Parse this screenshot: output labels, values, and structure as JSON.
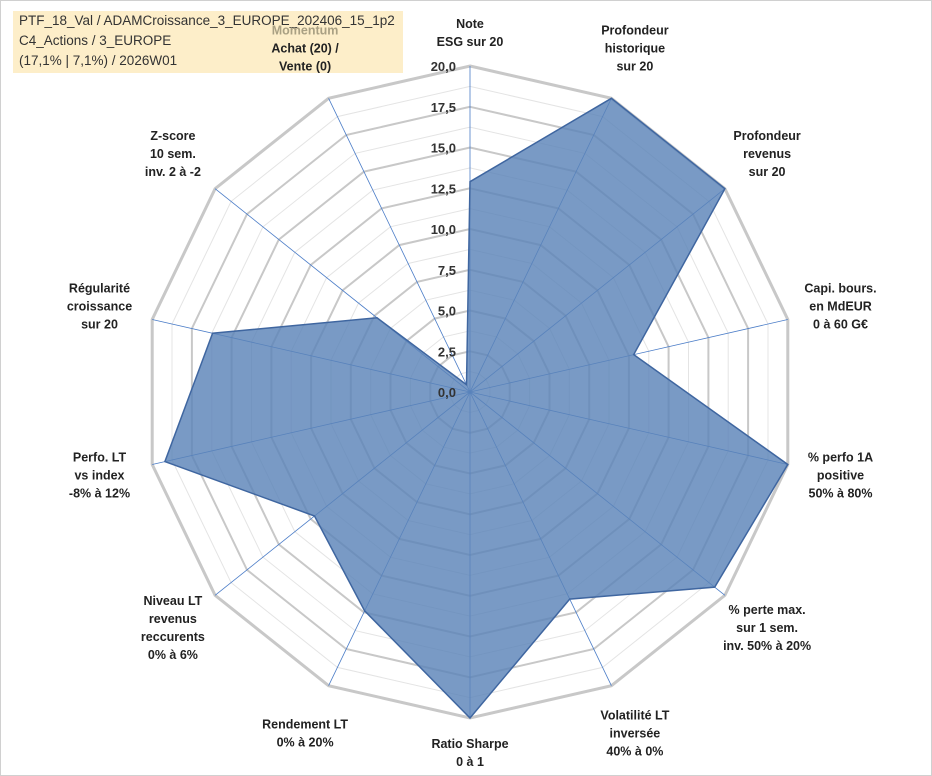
{
  "header": {
    "line1": "PTF_18_Val / ADAMCroissance_3_EUROPE_202406_15_1p2",
    "line2": "C4_Actions / 3_EUROPE",
    "line3": "(17,1% | 7,1%) / 2026W01"
  },
  "colors": {
    "fill": "#5b84b8",
    "stroke": "#3f66a0",
    "grid": "#c8c8c8",
    "spoke": "#4a7cc7",
    "info_bg": "#fdeec9",
    "momentum_title": "#a9a083"
  },
  "chart_data": {
    "type": "radar",
    "title": "",
    "rmin": 0,
    "rmax": 20,
    "ticks": [
      "0,0",
      "2,5",
      "5,0",
      "7,5",
      "10,0",
      "12,5",
      "15,0",
      "17,5",
      "20,0"
    ],
    "axes": [
      {
        "label": [
          "Note",
          "ESG sur 20"
        ],
        "value": 12.9
      },
      {
        "label": [
          "Profondeur",
          "historique",
          "sur 20"
        ],
        "value": 20
      },
      {
        "label": [
          "Profondeur",
          "revenus",
          "sur 20"
        ],
        "value": 20
      },
      {
        "label": [
          "Capi. bours.",
          "en MdEUR",
          "0 à 60 G€"
        ],
        "value": 10.3
      },
      {
        "label": [
          "% perfo 1A",
          "positive",
          "50% à 80%"
        ],
        "value": 20
      },
      {
        "label": [
          "% perte max.",
          "sur 1 sem.",
          "inv. 50% à 20%"
        ],
        "value": 19.2
      },
      {
        "label": [
          "Volatilité LT",
          "inversée",
          "40% à 0%"
        ],
        "value": 14.1
      },
      {
        "label": [
          "Ratio Sharpe",
          "0 à 1"
        ],
        "value": 20
      },
      {
        "label": [
          "Rendement LT",
          "0% à 20%"
        ],
        "value": 14.9
      },
      {
        "label": [
          "Niveau LT",
          "revenus",
          "reccurents",
          "0% à 6%"
        ],
        "value": 12.2
      },
      {
        "label": [
          "Perfo. LT",
          "vs index",
          "-8% à 12%"
        ],
        "value": 19.2
      },
      {
        "label": [
          "Régularité",
          "croissance",
          "sur 20"
        ],
        "value": 16.2
      },
      {
        "label": [
          "Z-score",
          "10 sem.",
          "inv. 2 à -2"
        ],
        "value": 7.3
      },
      {
        "label": [
          "Achat (20) /",
          "Vente (0)"
        ],
        "value": 0.5,
        "title": "Momentum"
      }
    ]
  }
}
